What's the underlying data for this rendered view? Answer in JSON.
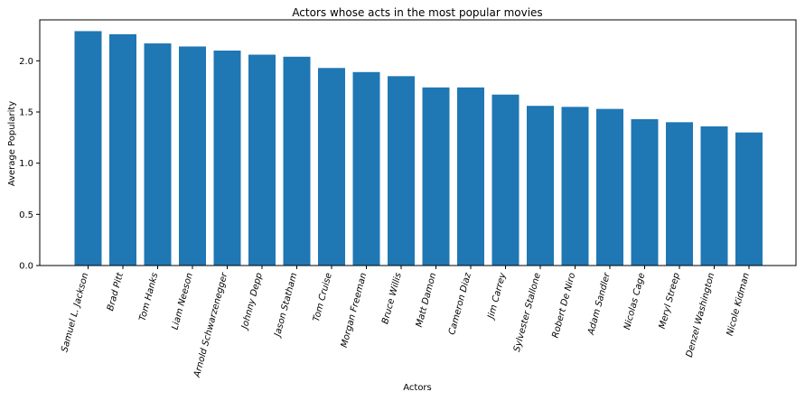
{
  "chart_data": {
    "type": "bar",
    "title": "Actors whose acts in the most popular movies",
    "xlabel": "Actors",
    "ylabel": "Average Popularity",
    "ylim": [
      0,
      2.4
    ],
    "yticks": [
      "0.0",
      "0.5",
      "1.0",
      "1.5",
      "2.0"
    ],
    "grid": false,
    "bar_color": "#1f77b4",
    "categories": [
      "Samuel L. Jackson",
      "Brad Pitt",
      "Tom Hanks",
      "Liam Neeson",
      "Arnold Schwarzenegger",
      "Johnny Depp",
      "Jason Statham",
      "Tom Cruise",
      "Morgan Freeman",
      "Bruce Willis",
      "Matt Damon",
      "Cameron Diaz",
      "Jim Carrey",
      "Sylvester Stallone",
      "Robert De Niro",
      "Adam Sandler",
      "Nicolas Cage",
      "Meryl Streep",
      "Denzel Washington",
      "Nicole Kidman"
    ],
    "values": [
      2.29,
      2.26,
      2.17,
      2.14,
      2.1,
      2.06,
      2.04,
      1.93,
      1.89,
      1.85,
      1.74,
      1.74,
      1.67,
      1.56,
      1.55,
      1.53,
      1.43,
      1.4,
      1.36,
      1.3
    ]
  }
}
